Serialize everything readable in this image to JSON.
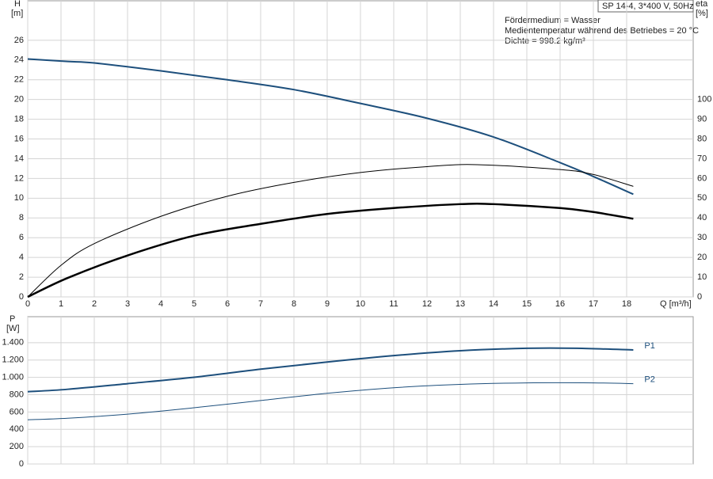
{
  "header": {
    "pump": "SP 14-4, 3*400 V, 50Hz",
    "lines": [
      "Fördermedium = Wasser",
      "Medientemperatur während des Betriebes = 20 °C",
      "Dichte = 998.2 kg/m³"
    ]
  },
  "chart_data": [
    {
      "type": "line",
      "y_label": "H",
      "y_unit": "[m]",
      "y2_label": "eta",
      "y2_unit": "[%]",
      "x_label": "Q [m³/h]",
      "xlim": [
        0,
        20
      ],
      "xticks": [
        0,
        1,
        2,
        3,
        4,
        5,
        6,
        7,
        8,
        9,
        10,
        11,
        12,
        13,
        14,
        15,
        16,
        17,
        18
      ],
      "ylim": [
        0,
        30
      ],
      "yticks": [
        0,
        2,
        4,
        6,
        8,
        10,
        12,
        14,
        16,
        18,
        20,
        22,
        24,
        26
      ],
      "y2lim": [
        0,
        150
      ],
      "y2ticks": [
        0,
        10,
        20,
        30,
        40,
        50,
        60,
        70,
        80,
        90,
        100
      ],
      "grid": true,
      "series": [
        {
          "color": "#1d4f7c",
          "line_width": 2,
          "x": [
            0,
            1.2,
            2,
            4,
            6,
            8,
            10,
            12,
            14,
            16,
            17,
            18.2
          ],
          "values": [
            24.1,
            23.85,
            23.7,
            22.9,
            22,
            21,
            19.6,
            18.1,
            16.2,
            13.6,
            12.2,
            10.4
          ]
        },
        {
          "color": "#000000",
          "line_width": 1,
          "axis": "y2",
          "x": [
            0,
            1,
            2,
            4,
            6,
            8,
            10,
            12,
            13.5,
            16,
            17,
            18.2
          ],
          "values": [
            0,
            16,
            27,
            40.8,
            51,
            58,
            63,
            66,
            67,
            64.5,
            62,
            56
          ]
        },
        {
          "color": "#000000",
          "line_width": 2.5,
          "axis": "y2",
          "x": [
            0,
            1.2,
            3,
            5,
            7,
            9,
            11,
            13,
            14,
            16,
            17,
            18.2
          ],
          "values": [
            0,
            9.6,
            21,
            31,
            37,
            42,
            45,
            47,
            47,
            45,
            43,
            39.6
          ]
        }
      ]
    },
    {
      "type": "line",
      "y_label": "P",
      "y_unit": "[W]",
      "xlim": [
        0,
        20
      ],
      "ylim": [
        0,
        1700
      ],
      "yticks": [
        0,
        200,
        400,
        600,
        800,
        {
          "value": 1000,
          "label": "1.000"
        },
        {
          "value": 1200,
          "label": "1.200"
        },
        {
          "value": 1400,
          "label": "1.400"
        }
      ],
      "grid": true,
      "series": [
        {
          "name": "P1",
          "color": "#1d4f7c",
          "line_width": 2,
          "x": [
            0,
            1.2,
            3,
            5,
            7,
            9,
            11,
            13,
            15,
            16.5,
            18.2
          ],
          "values": [
            834,
            862,
            927,
            1001,
            1094,
            1177,
            1251,
            1307,
            1335,
            1335,
            1316
          ]
        },
        {
          "name": "P2",
          "color": "#1d4f7c",
          "line_width": 1,
          "x": [
            0,
            1.2,
            3,
            5,
            7,
            9,
            11,
            13,
            15,
            17,
            18.2
          ],
          "values": [
            510,
            528,
            575,
            649,
            732,
            816,
            880,
            918,
            936,
            936,
            927
          ]
        }
      ]
    }
  ]
}
